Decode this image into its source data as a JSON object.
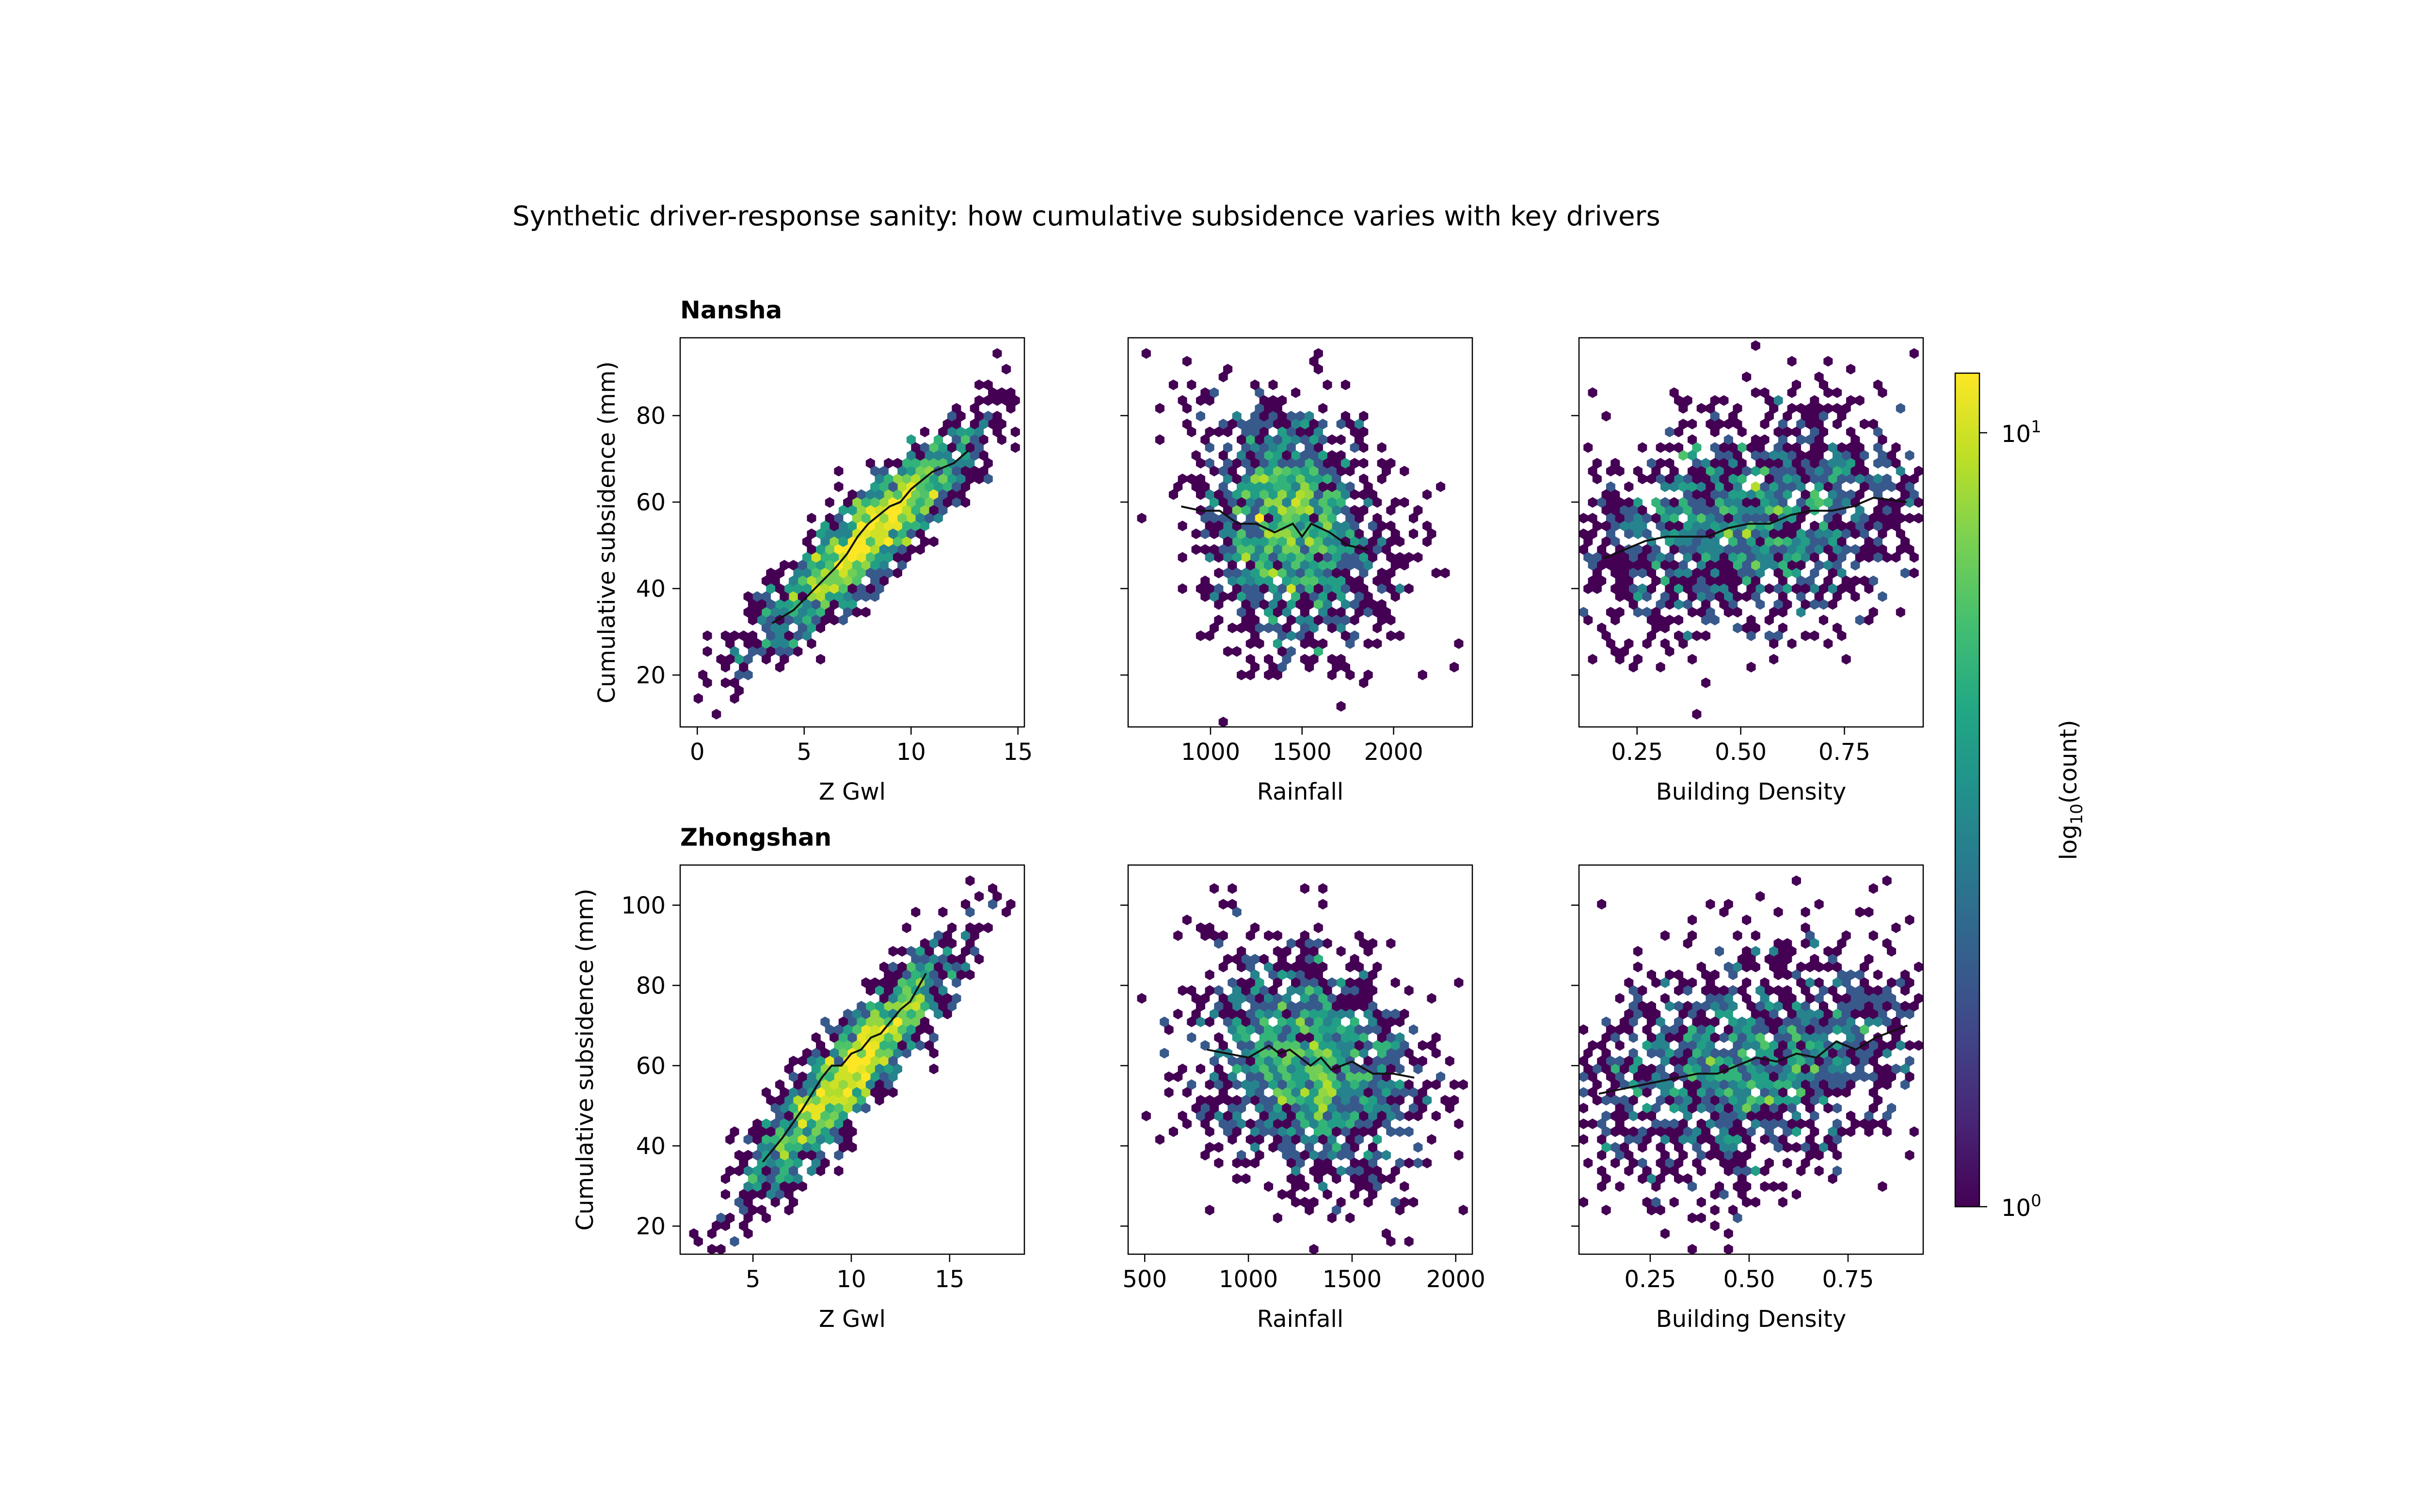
{
  "figure": {
    "title": "Synthetic driver-response sanity: how cumulative subsidence varies with key drivers"
  },
  "colorbar": {
    "label_prefix": "log",
    "label_sub": "10",
    "label_suffix": "(count)",
    "tick_top_base": "10",
    "tick_top_exp": "1",
    "tick_bottom_base": "10",
    "tick_bottom_exp": "0",
    "scale": "log",
    "range": [
      1,
      12
    ]
  },
  "chart_data": [
    {
      "type": "scatter",
      "style": "hexbin",
      "row_title": "Nansha",
      "xlabel": "Z Gwl",
      "ylabel": "Cumulative subsidence (mm)",
      "xlim": [
        -0.8,
        15.3
      ],
      "ylim": [
        8,
        98
      ],
      "xticks": [
        0,
        5,
        10,
        15
      ],
      "xtick_labels": [
        "0",
        "5",
        "10",
        "15"
      ],
      "yticks": [
        20,
        40,
        60,
        80
      ],
      "ytick_labels": [
        "20",
        "40",
        "60",
        "80"
      ],
      "cloud": {
        "cx": 8,
        "cy": 52,
        "sx": 2.6,
        "sy": 13,
        "rho": 0.9,
        "n": 1500
      },
      "outliers": [
        [
          0,
          14
        ],
        [
          1,
          11
        ],
        [
          0.5,
          26
        ],
        [
          14,
          94
        ],
        [
          13.5,
          88
        ]
      ],
      "trend": {
        "x": [
          3.5,
          4.5,
          5.5,
          6.5,
          7.0,
          7.5,
          8.0,
          8.5,
          9.0,
          9.5,
          10.0,
          10.5,
          11.0,
          11.5,
          12.0,
          12.7
        ],
        "y": [
          32,
          35,
          40,
          45,
          48,
          52,
          55,
          57,
          59,
          60,
          63,
          65,
          67,
          68,
          69,
          72
        ]
      }
    },
    {
      "type": "scatter",
      "style": "hexbin",
      "row_title": "",
      "xlabel": "Rainfall",
      "ylabel": "",
      "xlim": [
        550,
        2430
      ],
      "ylim": [
        8,
        98
      ],
      "xticks": [
        1000,
        1500,
        2000
      ],
      "xtick_labels": [
        "1000",
        "1500",
        "2000"
      ],
      "yticks": [
        20,
        40,
        60,
        80
      ],
      "ytick_labels": [],
      "cloud": {
        "cx": 1450,
        "cy": 54,
        "sx": 250,
        "sy": 14,
        "rho": -0.2,
        "n": 1500
      },
      "outliers": [
        [
          610,
          57
        ],
        [
          2320,
          21
        ],
        [
          1600,
          94
        ],
        [
          2110,
          58
        ],
        [
          1700,
          12
        ]
      ],
      "trend": {
        "x": [
          840,
          950,
          1050,
          1150,
          1250,
          1350,
          1450,
          1500,
          1550,
          1650,
          1750,
          1860
        ],
        "y": [
          59,
          58,
          58,
          55,
          55,
          53,
          55,
          52,
          55,
          53,
          50,
          49
        ]
      }
    },
    {
      "type": "scatter",
      "style": "hexbin",
      "row_title": "",
      "xlabel": "Building Density",
      "ylabel": "",
      "xlim": [
        0.11,
        0.94
      ],
      "ylim": [
        8,
        98
      ],
      "xticks": [
        0.25,
        0.5,
        0.75
      ],
      "xtick_labels": [
        "0.25",
        "0.50",
        "0.75"
      ],
      "yticks": [
        20,
        40,
        60,
        80
      ],
      "ytick_labels": [],
      "cloud": {
        "cx": 0.52,
        "cy": 55,
        "sx": 0.22,
        "sy": 13,
        "rho": 0.3,
        "n": 1500
      },
      "outliers": [
        [
          0.92,
          95
        ],
        [
          0.4,
          11
        ],
        [
          0.18,
          80
        ],
        [
          0.72,
          92
        ]
      ],
      "trend": {
        "x": [
          0.17,
          0.22,
          0.27,
          0.32,
          0.37,
          0.42,
          0.47,
          0.52,
          0.57,
          0.62,
          0.67,
          0.72,
          0.77,
          0.82,
          0.9
        ],
        "y": [
          47,
          49,
          51,
          52,
          52,
          52,
          54,
          55,
          55,
          57,
          58,
          58,
          59,
          61,
          60
        ]
      }
    },
    {
      "type": "scatter",
      "style": "hexbin",
      "row_title": "Zhongshan",
      "xlabel": "Z Gwl",
      "ylabel": "Cumulative subsidence (mm)",
      "xlim": [
        1.3,
        18.8
      ],
      "ylim": [
        13,
        110
      ],
      "xticks": [
        5,
        10,
        15
      ],
      "xtick_labels": [
        "5",
        "10",
        "15"
      ],
      "yticks": [
        20,
        40,
        60,
        80,
        100
      ],
      "ytick_labels": [
        "20",
        "40",
        "60",
        "80",
        "100"
      ],
      "cloud": {
        "cx": 10,
        "cy": 59,
        "sx": 2.6,
        "sy": 15,
        "rho": 0.9,
        "n": 1500
      },
      "outliers": [
        [
          2,
          17
        ],
        [
          18,
          98
        ],
        [
          16,
          105
        ]
      ],
      "trend": {
        "x": [
          5.5,
          6.5,
          7.5,
          8.0,
          8.5,
          9.0,
          9.5,
          10.0,
          10.5,
          11.0,
          11.5,
          12.0,
          12.5,
          13.0,
          13.8
        ],
        "y": [
          36,
          42,
          49,
          53,
          57,
          60,
          60,
          63,
          64,
          67,
          68,
          71,
          74,
          76,
          83
        ]
      }
    },
    {
      "type": "scatter",
      "style": "hexbin",
      "row_title": "",
      "xlabel": "Rainfall",
      "ylabel": "",
      "xlim": [
        420,
        2080
      ],
      "ylim": [
        13,
        110
      ],
      "xticks": [
        500,
        1000,
        1500,
        2000
      ],
      "xtick_labels": [
        "500",
        "1000",
        "1500",
        "2000"
      ],
      "yticks": [
        20,
        40,
        60,
        80,
        100
      ],
      "ytick_labels": [],
      "cloud": {
        "cx": 1300,
        "cy": 60,
        "sx": 260,
        "sy": 15,
        "rho": -0.2,
        "n": 1500
      },
      "outliers": [
        [
          480,
          76
        ],
        [
          570,
          42
        ],
        [
          2000,
          45
        ],
        [
          1280,
          105
        ],
        [
          930,
          105
        ]
      ],
      "trend": {
        "x": [
          800,
          900,
          1000,
          1100,
          1150,
          1200,
          1250,
          1300,
          1350,
          1400,
          1500,
          1600,
          1700,
          1800
        ],
        "y": [
          64,
          63,
          62,
          65,
          63,
          64,
          62,
          60,
          62,
          59,
          61,
          58,
          58,
          57
        ]
      }
    },
    {
      "type": "scatter",
      "style": "hexbin",
      "row_title": "",
      "xlabel": "Building Density",
      "ylabel": "",
      "xlim": [
        0.07,
        0.94
      ],
      "ylim": [
        13,
        110
      ],
      "xticks": [
        0.25,
        0.5,
        0.75
      ],
      "xtick_labels": [
        "0.25",
        "0.50",
        "0.75"
      ],
      "yticks": [
        20,
        40,
        60,
        80,
        100
      ],
      "ytick_labels": [],
      "cloud": {
        "cx": 0.5,
        "cy": 60,
        "sx": 0.22,
        "sy": 15,
        "rho": 0.3,
        "n": 1500
      },
      "outliers": [
        [
          0.62,
          105
        ],
        [
          0.85,
          105
        ],
        [
          0.35,
          22
        ],
        [
          0.12,
          100
        ]
      ],
      "trend": {
        "x": [
          0.12,
          0.17,
          0.22,
          0.27,
          0.32,
          0.37,
          0.42,
          0.47,
          0.52,
          0.57,
          0.62,
          0.67,
          0.72,
          0.77,
          0.82,
          0.9
        ],
        "y": [
          53,
          54,
          55,
          56,
          57,
          58,
          58,
          60,
          62,
          61,
          63,
          62,
          66,
          64,
          67,
          70
        ]
      }
    }
  ]
}
